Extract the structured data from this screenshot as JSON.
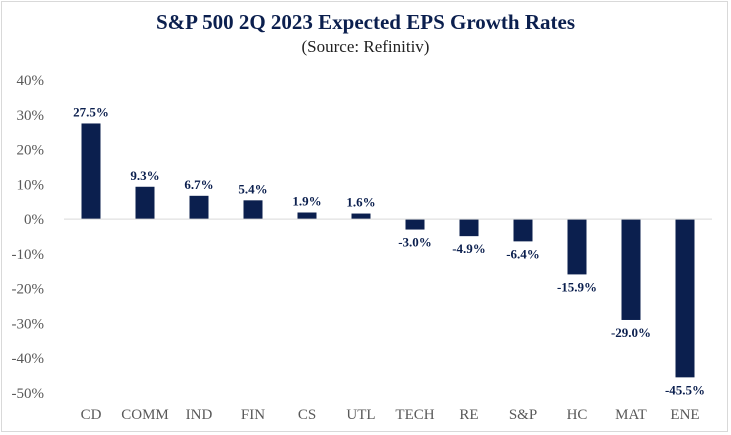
{
  "chart_data": {
    "type": "bar",
    "title": "S&P 500 2Q 2023 Expected EPS Growth Rates",
    "subtitle": "(Source: Refinitiv)",
    "categories": [
      "CD",
      "COMM",
      "IND",
      "FIN",
      "CS",
      "UTL",
      "TECH",
      "RE",
      "S&P",
      "HC",
      "MAT",
      "ENE"
    ],
    "values": [
      27.5,
      9.3,
      6.7,
      5.4,
      1.9,
      1.6,
      -3.0,
      -4.9,
      -6.4,
      -15.9,
      -29.0,
      -45.5
    ],
    "data_labels": [
      "27.5%",
      "9.3%",
      "6.7%",
      "5.4%",
      "1.9%",
      "1.6%",
      "-3.0%",
      "-4.9%",
      "-6.4%",
      "-15.9%",
      "-29.0%",
      "-45.5%"
    ],
    "y_ticks": [
      40,
      30,
      20,
      10,
      0,
      -10,
      -20,
      -30,
      -40,
      -50
    ],
    "y_tick_labels": [
      "40%",
      "30%",
      "20%",
      "10%",
      "0%",
      "-10%",
      "-20%",
      "-30%",
      "-40%",
      "-50%"
    ],
    "ylim": [
      -50,
      40
    ],
    "xlabel": "",
    "ylabel": "",
    "grid": false,
    "legend": "none",
    "colors": {
      "bar": "#0b1f4e",
      "axis": "#d9d9d9",
      "label": "#595959",
      "title": "#0b1f4e"
    }
  }
}
